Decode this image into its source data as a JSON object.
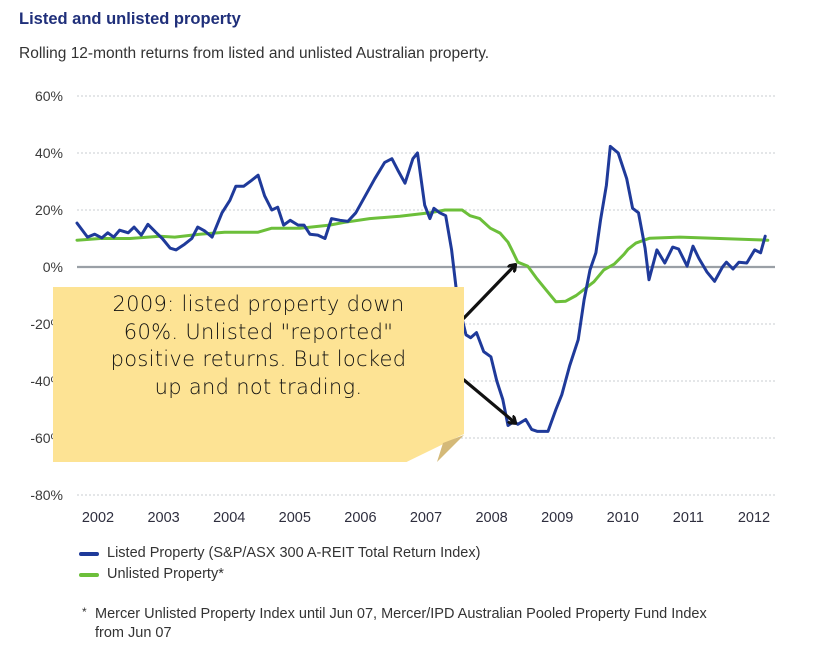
{
  "header": {
    "title": "Listed and unlisted property",
    "subtitle": "Rolling 12-month returns from listed and unlisted Australian property."
  },
  "annotation": {
    "text_lines": [
      "2009: listed property down",
      "60%. Unlisted \"reported\"",
      "positive returns. But locked",
      "up and not trading."
    ],
    "note_color": "#fde394",
    "arrow_targets": [
      {
        "series": "Unlisted Property*",
        "year": 2008.4,
        "value": 2
      },
      {
        "series": "Listed Property",
        "year": 2008.4,
        "value": -56
      }
    ]
  },
  "legend": [
    {
      "label": "Listed Property (S&P/ASX 300 A-REIT Total Return Index)",
      "color": "#1f3a9a"
    },
    {
      "label": "Unlisted Property*",
      "color": "#6cbf3a"
    }
  ],
  "footnote": {
    "marker": "*",
    "text": "Mercer Unlisted Property Index until Jun 07,  Mercer/IPD Australian Pooled Property Fund Index from Jun 07"
  },
  "chart_data": {
    "type": "line",
    "title": "Listed and unlisted property",
    "subtitle": "Rolling 12-month returns from listed and unlisted Australian property.",
    "xlabel": "",
    "ylabel": "",
    "x_tick_labels": [
      "2002",
      "2003",
      "2004",
      "2005",
      "2006",
      "2007",
      "2008",
      "2009",
      "2010",
      "2011",
      "2012"
    ],
    "y_tick_labels": [
      "60%",
      "40%",
      "20%",
      "0%",
      "-20%",
      "-40%",
      "-60%",
      "-80%"
    ],
    "y_ticks": [
      60,
      40,
      20,
      0,
      -20,
      -40,
      -60,
      -80
    ],
    "ylim": [
      -80,
      60
    ],
    "xlim": [
      2001.7,
      2012.35
    ],
    "grid": "horizontal dotted",
    "zero_line": true,
    "legend_position": "bottom-left",
    "series": [
      {
        "name": "Listed Property (S&P/ASX 300 A-REIT Total Return Index)",
        "color": "#1f3a9a",
        "points": [
          [
            2001.68,
            15.4
          ],
          [
            2001.84,
            10.5
          ],
          [
            2001.95,
            11.5
          ],
          [
            2002.06,
            10.2
          ],
          [
            2002.15,
            12
          ],
          [
            2002.24,
            10.5
          ],
          [
            2002.33,
            12.9
          ],
          [
            2002.46,
            12
          ],
          [
            2002.55,
            14
          ],
          [
            2002.66,
            11.2
          ],
          [
            2002.76,
            15
          ],
          [
            2002.88,
            12.2
          ],
          [
            2002.98,
            10
          ],
          [
            2003.1,
            6.6
          ],
          [
            2003.19,
            6
          ],
          [
            2003.32,
            8
          ],
          [
            2003.43,
            10
          ],
          [
            2003.52,
            14
          ],
          [
            2003.63,
            12.6
          ],
          [
            2003.74,
            10.5
          ],
          [
            2003.89,
            19
          ],
          [
            2004.01,
            23.4
          ],
          [
            2004.1,
            28.3
          ],
          [
            2004.22,
            28.3
          ],
          [
            2004.34,
            30.4
          ],
          [
            2004.44,
            32.2
          ],
          [
            2004.54,
            25
          ],
          [
            2004.65,
            20
          ],
          [
            2004.74,
            21
          ],
          [
            2004.83,
            14.7
          ],
          [
            2004.93,
            16.4
          ],
          [
            2005.05,
            14.7
          ],
          [
            2005.14,
            14.7
          ],
          [
            2005.23,
            11.5
          ],
          [
            2005.35,
            11.2
          ],
          [
            2005.46,
            10
          ],
          [
            2005.56,
            17
          ],
          [
            2005.69,
            16.4
          ],
          [
            2005.81,
            16
          ],
          [
            2005.93,
            19
          ],
          [
            2006.07,
            24.8
          ],
          [
            2006.22,
            31
          ],
          [
            2006.37,
            36.7
          ],
          [
            2006.48,
            38
          ],
          [
            2006.57,
            34
          ],
          [
            2006.68,
            29.4
          ],
          [
            2006.8,
            38
          ],
          [
            2006.87,
            40
          ],
          [
            2006.98,
            21.7
          ],
          [
            2007.06,
            17
          ],
          [
            2007.12,
            20.6
          ],
          [
            2007.21,
            19
          ],
          [
            2007.3,
            18
          ],
          [
            2007.39,
            6
          ],
          [
            2007.48,
            -11.5
          ],
          [
            2007.61,
            -23.8
          ],
          [
            2007.68,
            -24.8
          ],
          [
            2007.77,
            -23
          ],
          [
            2007.88,
            -29.7
          ],
          [
            2007.99,
            -31.5
          ],
          [
            2008.08,
            -40
          ],
          [
            2008.17,
            -46.5
          ],
          [
            2008.25,
            -55.6
          ],
          [
            2008.34,
            -54.2
          ],
          [
            2008.4,
            -55.2
          ],
          [
            2008.52,
            -53.5
          ],
          [
            2008.61,
            -57
          ],
          [
            2008.7,
            -57.7
          ],
          [
            2008.86,
            -57.7
          ],
          [
            2008.98,
            -50
          ],
          [
            2009.07,
            -44.8
          ],
          [
            2009.19,
            -34.6
          ],
          [
            2009.32,
            -25.5
          ],
          [
            2009.41,
            -11.5
          ],
          [
            2009.5,
            -1
          ],
          [
            2009.59,
            5
          ],
          [
            2009.66,
            16.4
          ],
          [
            2009.75,
            28.7
          ],
          [
            2009.81,
            42.3
          ],
          [
            2009.93,
            40
          ],
          [
            2010.06,
            31
          ],
          [
            2010.15,
            20.6
          ],
          [
            2010.24,
            19
          ],
          [
            2010.34,
            6.6
          ],
          [
            2010.4,
            -4.5
          ],
          [
            2010.52,
            6
          ],
          [
            2010.64,
            1.4
          ],
          [
            2010.76,
            7
          ],
          [
            2010.85,
            6.3
          ],
          [
            2010.98,
            0.3
          ],
          [
            2011.07,
            7.3
          ],
          [
            2011.16,
            3
          ],
          [
            2011.28,
            -1.7
          ],
          [
            2011.4,
            -5
          ],
          [
            2011.52,
            0
          ],
          [
            2011.58,
            1.7
          ],
          [
            2011.68,
            -0.7
          ],
          [
            2011.77,
            1.7
          ],
          [
            2011.89,
            1.4
          ],
          [
            2012.01,
            6
          ],
          [
            2012.1,
            5
          ],
          [
            2012.17,
            10.8
          ]
        ]
      },
      {
        "name": "Unlisted Property*",
        "color": "#6cbf3a",
        "points": [
          [
            2001.68,
            9.4
          ],
          [
            2002.03,
            10
          ],
          [
            2002.49,
            10
          ],
          [
            2002.94,
            10.8
          ],
          [
            2003.17,
            10.5
          ],
          [
            2003.55,
            11.5
          ],
          [
            2003.93,
            12.2
          ],
          [
            2004.44,
            12.2
          ],
          [
            2004.65,
            13.6
          ],
          [
            2005.08,
            13.6
          ],
          [
            2005.53,
            14.7
          ],
          [
            2005.76,
            15.7
          ],
          [
            2006.14,
            17
          ],
          [
            2006.6,
            17.8
          ],
          [
            2007.06,
            19
          ],
          [
            2007.29,
            20
          ],
          [
            2007.55,
            20
          ],
          [
            2007.67,
            18
          ],
          [
            2007.82,
            17
          ],
          [
            2007.98,
            13.6
          ],
          [
            2008.13,
            11.9
          ],
          [
            2008.25,
            8.7
          ],
          [
            2008.31,
            6
          ],
          [
            2008.4,
            1.7
          ],
          [
            2008.55,
            0.3
          ],
          [
            2008.68,
            -3.8
          ],
          [
            2008.83,
            -8
          ],
          [
            2008.98,
            -12.2
          ],
          [
            2009.13,
            -12
          ],
          [
            2009.29,
            -10
          ],
          [
            2009.44,
            -7.3
          ],
          [
            2009.56,
            -5.2
          ],
          [
            2009.71,
            -1
          ],
          [
            2009.87,
            1
          ],
          [
            2010.02,
            4.5
          ],
          [
            2010.08,
            6.2
          ],
          [
            2010.2,
            8.4
          ],
          [
            2010.41,
            10.1
          ],
          [
            2010.87,
            10.5
          ],
          [
            2011.48,
            10
          ],
          [
            2012.21,
            9.4
          ]
        ]
      }
    ]
  }
}
